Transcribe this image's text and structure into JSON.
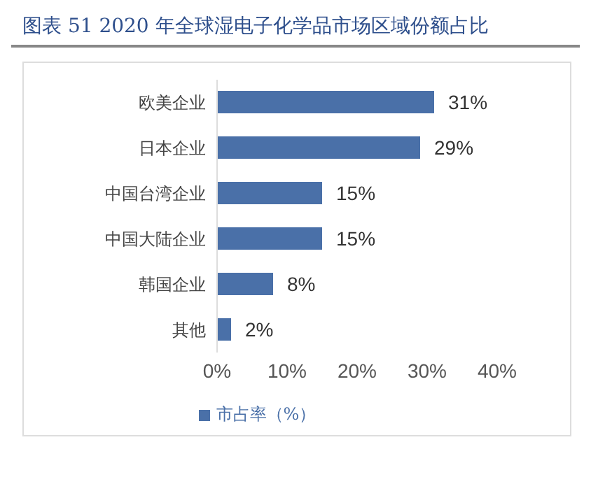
{
  "chart_data": {
    "type": "bar",
    "orientation": "horizontal",
    "title": "图表 51 2020 年全球湿电子化学品市场区域份额占比",
    "categories": [
      "欧美企业",
      "日本企业",
      "中国台湾企业",
      "中国大陆企业",
      "韩国企业",
      "其他"
    ],
    "series": [
      {
        "name": "市占率（%）",
        "color": "#4a70a8",
        "values": [
          31,
          29,
          15,
          15,
          8,
          2
        ],
        "value_labels": [
          "31%",
          "29%",
          "15%",
          "15%",
          "8%",
          "2%"
        ]
      }
    ],
    "xlim": [
      0,
      40
    ],
    "xticks": [
      {
        "value": 0,
        "label": "0%"
      },
      {
        "value": 10,
        "label": "10%"
      },
      {
        "value": 20,
        "label": "20%"
      },
      {
        "value": 30,
        "label": "30%"
      },
      {
        "value": 40,
        "label": "40%"
      }
    ],
    "grid": false,
    "legend": "bottom"
  }
}
